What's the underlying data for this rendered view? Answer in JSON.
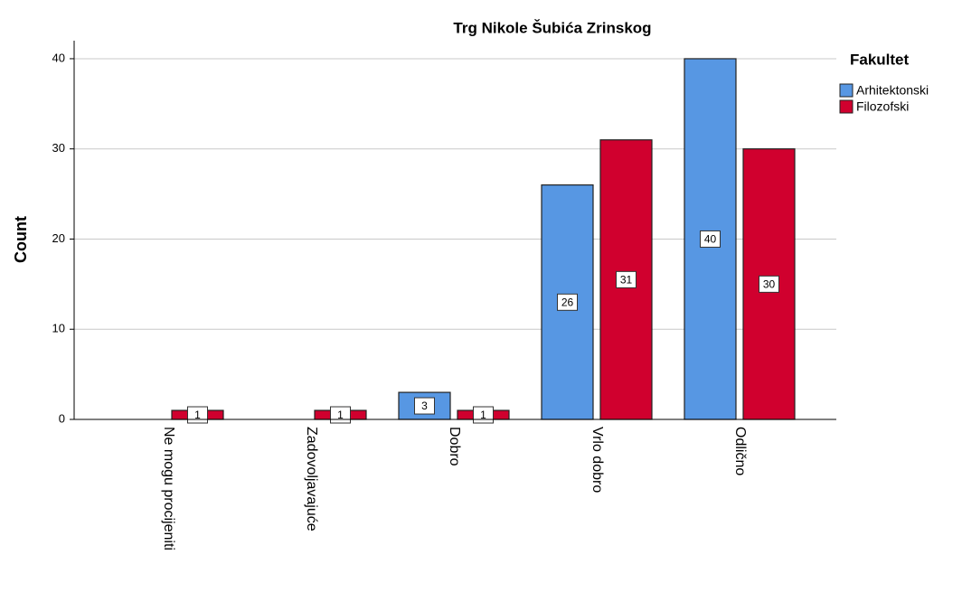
{
  "chart_data": {
    "type": "bar",
    "title": "Trg Nikole Šubića Zrinskog",
    "y_label": "Count",
    "categories": [
      "Ne mogu procijeniti",
      "Zadovoljavajuće",
      "Dobro",
      "Vrlo dobro",
      "Odlično"
    ],
    "series": [
      {
        "name": "Arhitektonski",
        "color": "#5797e3",
        "values": [
          null,
          null,
          3,
          26,
          40
        ]
      },
      {
        "name": "Filozofski",
        "color": "#d0002e",
        "values": [
          1,
          1,
          1,
          31,
          30
        ]
      }
    ],
    "legend_title": "Fakultet",
    "legend_position": "right",
    "ylim": [
      0,
      42
    ],
    "yticks": [
      0,
      10,
      20,
      30,
      40
    ],
    "grid": true
  }
}
